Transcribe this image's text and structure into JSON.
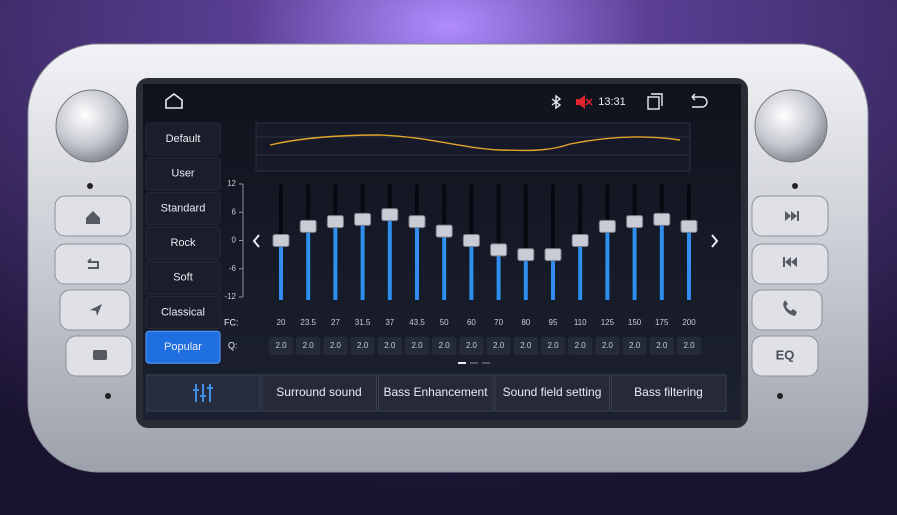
{
  "time": "13:31",
  "presets": [
    "Default",
    "User",
    "Standard",
    "Rock",
    "Soft",
    "Classical",
    "Popular"
  ],
  "selected_preset": 6,
  "equalizer": {
    "yticks": [
      12,
      6,
      0,
      -6,
      -12
    ],
    "ylim": [
      -12,
      12
    ],
    "fc_label": "FC:",
    "q_label": "Q:",
    "fc": [
      "20",
      "23.5",
      "27",
      "31.5",
      "37",
      "43.5",
      "50",
      "60",
      "70",
      "80",
      "95",
      "110",
      "125",
      "150",
      "175",
      "200"
    ],
    "q": [
      "2.0",
      "2.0",
      "2.0",
      "2.0",
      "2.0",
      "2.0",
      "2.0",
      "2.0",
      "2.0",
      "2.0",
      "2.0",
      "2.0",
      "2.0",
      "2.0",
      "2.0",
      "2.0"
    ],
    "gains": [
      0,
      3,
      4,
      4.5,
      5.5,
      4,
      2,
      0,
      -2,
      -3,
      -3,
      0,
      3,
      4,
      4.5,
      3
    ],
    "color": "#2f8ff0"
  },
  "tabs": [
    "Surround sound",
    "Bass Enhancement",
    "Sound field setting",
    "Bass filtering"
  ],
  "side_button": "EQ"
}
